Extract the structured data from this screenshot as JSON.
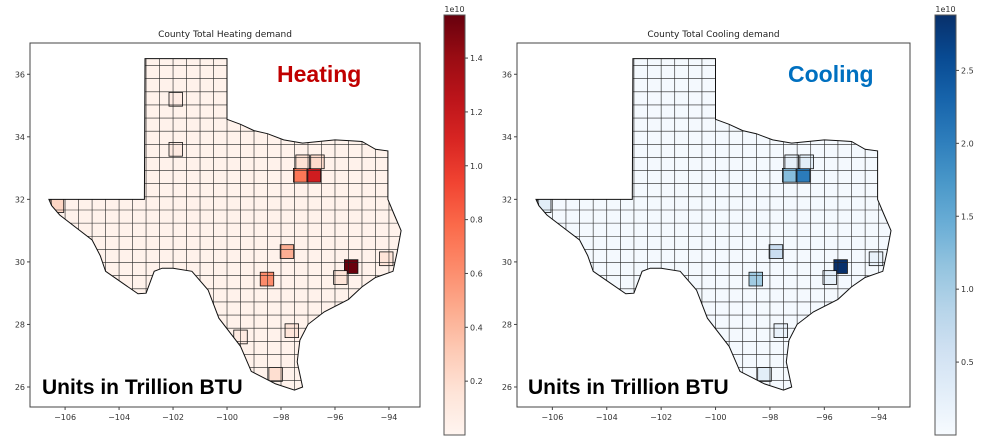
{
  "chart_data": [
    {
      "type": "heatmap",
      "subtype": "choropleth",
      "title": "County Total Heating demand",
      "overlay_label": "Heating",
      "overlay_color": "#c00000",
      "units_note": "Units in Trillion BTU",
      "colormap": "Reds",
      "colorbar": {
        "exponent_label": "1e10",
        "ticks": [
          "0.2",
          "0.4",
          "0.6",
          "0.8",
          "1.0",
          "1.2",
          "1.4"
        ],
        "tick_values": [
          0.2,
          0.4,
          0.6,
          0.8,
          1.0,
          1.2,
          1.4
        ],
        "range": [
          0.0,
          1.56
        ]
      },
      "xticks": [
        "−106",
        "−104",
        "−102",
        "−100",
        "−98",
        "−96",
        "−94"
      ],
      "xtick_values": [
        -106,
        -104,
        -102,
        -100,
        -98,
        -96,
        -94
      ],
      "yticks": [
        "26",
        "28",
        "30",
        "32",
        "34",
        "36"
      ],
      "ytick_values": [
        26,
        28,
        30,
        32,
        34,
        36
      ],
      "xlim": [
        -107.3,
        -92.85
      ],
      "ylim": [
        25.36,
        37.0
      ],
      "background_value": 0.03,
      "counties": [
        {
          "lon": -95.4,
          "lat": 29.85,
          "value": 1.55
        },
        {
          "lon": -96.78,
          "lat": 32.77,
          "value": 1.15
        },
        {
          "lon": -97.29,
          "lat": 32.77,
          "value": 0.72
        },
        {
          "lon": -98.52,
          "lat": 29.45,
          "value": 0.62
        },
        {
          "lon": -97.78,
          "lat": 30.33,
          "value": 0.45
        },
        {
          "lon": -106.3,
          "lat": 31.8,
          "value": 0.25
        },
        {
          "lon": -97.2,
          "lat": 33.2,
          "value": 0.18
        },
        {
          "lon": -96.65,
          "lat": 33.2,
          "value": 0.22
        },
        {
          "lon": -98.2,
          "lat": 26.4,
          "value": 0.2
        },
        {
          "lon": -97.6,
          "lat": 27.8,
          "value": 0.15
        },
        {
          "lon": -94.1,
          "lat": 30.1,
          "value": 0.15
        },
        {
          "lon": -95.8,
          "lat": 29.5,
          "value": 0.15
        },
        {
          "lon": -99.5,
          "lat": 27.6,
          "value": 0.1
        },
        {
          "lon": -101.9,
          "lat": 33.6,
          "value": 0.1
        },
        {
          "lon": -101.9,
          "lat": 35.2,
          "value": 0.08
        }
      ]
    },
    {
      "type": "heatmap",
      "subtype": "choropleth",
      "title": "County Total Cooling demand",
      "overlay_label": "Cooling",
      "overlay_color": "#0070c0",
      "units_note": "Units in Trillion BTU",
      "colormap": "Blues",
      "colorbar": {
        "exponent_label": "1e10",
        "ticks": [
          "0.5",
          "1.0",
          "1.5",
          "2.0",
          "2.5"
        ],
        "tick_values": [
          0.5,
          1.0,
          1.5,
          2.0,
          2.5
        ],
        "range": [
          0.0,
          2.88
        ]
      },
      "xticks": [
        "−106",
        "−104",
        "−102",
        "−100",
        "−98",
        "−96",
        "−94"
      ],
      "xtick_values": [
        -106,
        -104,
        -102,
        -100,
        -98,
        -96,
        -94
      ],
      "yticks": [
        "26",
        "28",
        "30",
        "32",
        "34",
        "36"
      ],
      "ytick_values": [
        26,
        28,
        30,
        32,
        34,
        36
      ],
      "xlim": [
        -107.3,
        -92.85
      ],
      "ylim": [
        25.36,
        37.0
      ],
      "background_value": 0.05,
      "counties": [
        {
          "lon": -95.4,
          "lat": 29.85,
          "value": 2.88
        },
        {
          "lon": -96.78,
          "lat": 32.77,
          "value": 2.05
        },
        {
          "lon": -97.29,
          "lat": 32.77,
          "value": 1.25
        },
        {
          "lon": -98.52,
          "lat": 29.45,
          "value": 1.05
        },
        {
          "lon": -97.78,
          "lat": 30.33,
          "value": 0.65
        },
        {
          "lon": -106.3,
          "lat": 31.8,
          "value": 0.3
        },
        {
          "lon": -97.2,
          "lat": 33.2,
          "value": 0.25
        },
        {
          "lon": -96.65,
          "lat": 33.2,
          "value": 0.3
        },
        {
          "lon": -98.2,
          "lat": 26.4,
          "value": 0.3
        },
        {
          "lon": -97.6,
          "lat": 27.8,
          "value": 0.2
        },
        {
          "lon": -94.1,
          "lat": 30.1,
          "value": 0.2
        },
        {
          "lon": -95.8,
          "lat": 29.5,
          "value": 0.25
        }
      ]
    }
  ]
}
